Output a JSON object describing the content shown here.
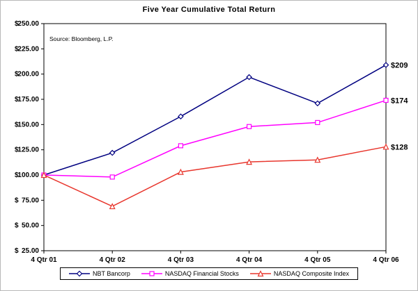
{
  "chart_data": {
    "type": "line",
    "title": "Five Year Cumulative Total Return",
    "source_note": "Source: Bloomberg, L.P.",
    "categories": [
      "4 Qtr 01",
      "4 Qtr 02",
      "4 Qtr 03",
      "4 Qtr 04",
      "4 Qtr 05",
      "4 Qtr 06"
    ],
    "series": [
      {
        "name": "NBT Bancorp",
        "color": "#000080",
        "marker": "diamond",
        "values": [
          100,
          122,
          158,
          197,
          171,
          209
        ],
        "end_label": "$209"
      },
      {
        "name": "NASDAQ Financial Stocks",
        "color": "#FF00FF",
        "marker": "square",
        "values": [
          100,
          98,
          129,
          148,
          152,
          174
        ],
        "end_label": "$174"
      },
      {
        "name": "NASDAQ Composite Index",
        "color": "#E8362D",
        "marker": "triangle",
        "values": [
          100,
          69,
          103,
          113,
          115,
          128
        ],
        "end_label": "$128"
      }
    ],
    "ylim": [
      25,
      250
    ],
    "ytick_step": 25,
    "ytick_labels": [
      "$ 250.00",
      "$ 225.00",
      "$ 200.00",
      "$ 175.00",
      "$ 150.00",
      "$ 125.00",
      "$ 100.00",
      "$ 75.00",
      "$ 50.00",
      "$ 25.00"
    ],
    "xlabel": "",
    "ylabel": "",
    "grid": false,
    "legend_position": "bottom"
  }
}
